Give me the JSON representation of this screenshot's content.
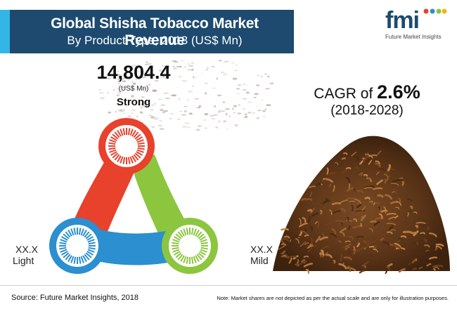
{
  "header": {
    "title_line1": "Global Shisha Tobacco Market Revenue",
    "title_line2": "By Product Type, 2018 (US$ Mn)"
  },
  "logo": {
    "wordmark": "fmi",
    "tagline": "Future Market Insights"
  },
  "colors": {
    "header_band": "#1d4a6e",
    "header_accent": "#33b5e5",
    "strong": "#e8412c",
    "light": "#2b8fd0",
    "mild": "#8cc63f"
  },
  "chart_data": {
    "type": "table",
    "categories": [
      "Strong",
      "Light",
      "Mild"
    ],
    "values": [
      "14,804.4",
      "XX.X",
      "XX.X"
    ],
    "unit": "(US$ Mn)",
    "segments": [
      {
        "name": "Strong",
        "value": "14,804.4",
        "unit": "(US$ Mn)",
        "color": "#e8412c"
      },
      {
        "name": "Light",
        "value": "XX.X",
        "color": "#2b8fd0"
      },
      {
        "name": "Mild",
        "value": "XX.X",
        "color": "#8cc63f"
      }
    ],
    "cagr": {
      "label": "CAGR of",
      "value": "2.6%",
      "period": "(2018-2028)"
    }
  },
  "footer": {
    "source": "Source: Future Market Insights, 2018",
    "note": "Note: Market shares are not depicted as per the actual scale and are only for illustration purposes."
  }
}
